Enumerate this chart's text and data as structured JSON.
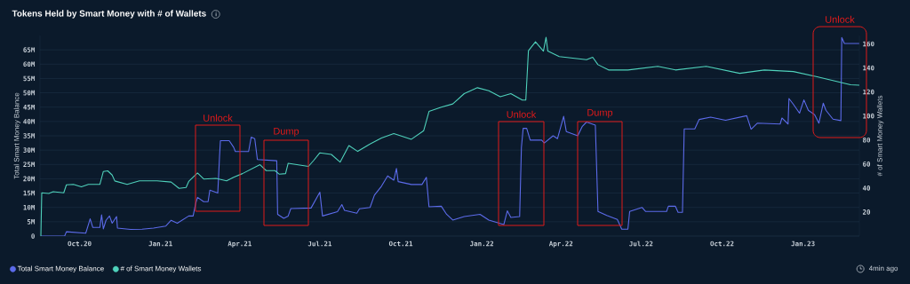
{
  "chart_data": {
    "type": "line",
    "title": "Tokens Held by Smart Money with # of Wallets",
    "ylabel": "Total Smart Money Balance",
    "y2label": "# of Smart Money Wallets",
    "xlim": [
      "2020-08-17",
      "2023-03-06"
    ],
    "xticks": [
      {
        "value": "2020-10-01",
        "label": "Oct.20"
      },
      {
        "value": "2021-01-01",
        "label": "Jan.21"
      },
      {
        "value": "2021-04-01",
        "label": "Apr.21"
      },
      {
        "value": "2021-07-01",
        "label": "Jul.21"
      },
      {
        "value": "2021-10-01",
        "label": "Oct.21"
      },
      {
        "value": "2022-01-01",
        "label": "Jan.22"
      },
      {
        "value": "2022-04-01",
        "label": "Apr.22"
      },
      {
        "value": "2022-07-01",
        "label": "Jul.22"
      },
      {
        "value": "2022-10-01",
        "label": "Oct.22"
      },
      {
        "value": "2023-01-01",
        "label": "Jan.23"
      }
    ],
    "ylim": [
      0,
      70000000
    ],
    "yticks": [
      0,
      {
        "value": 5000000,
        "label": "5M"
      },
      {
        "value": 10000000,
        "label": "10M"
      },
      {
        "value": 15000000,
        "label": "15M"
      },
      {
        "value": 20000000,
        "label": "20M"
      },
      {
        "value": 25000000,
        "label": "25M"
      },
      {
        "value": 30000000,
        "label": "30M"
      },
      {
        "value": 35000000,
        "label": "35M"
      },
      {
        "value": 40000000,
        "label": "40M"
      },
      {
        "value": 45000000,
        "label": "45M"
      },
      {
        "value": 50000000,
        "label": "50M"
      },
      {
        "value": 55000000,
        "label": "55M"
      },
      {
        "value": 60000000,
        "label": "60M"
      },
      {
        "value": 65000000,
        "label": "65M"
      }
    ],
    "y2lim": [
      0,
      167
    ],
    "y2ticks": [
      20,
      40,
      60,
      80,
      100,
      120,
      140,
      160
    ],
    "grid": "y",
    "legend": "bottom",
    "series": [
      {
        "name": "Total Smart Money Balance",
        "color": "#5c6bea",
        "x": [
          "2020-08-18",
          "2020-09-14",
          "2020-09-16",
          "2020-10-08",
          "2020-10-13",
          "2020-10-16",
          "2020-10-24",
          "2020-10-26",
          "2020-10-28",
          "2020-10-31",
          "2020-11-04",
          "2020-11-07",
          "2020-11-12",
          "2020-11-13",
          "2020-11-28",
          "2020-12-11",
          "2020-12-24",
          "2021-01-07",
          "2021-01-13",
          "2021-01-20",
          "2021-02-02",
          "2021-02-07",
          "2021-02-10",
          "2021-02-12",
          "2021-02-19",
          "2021-02-24",
          "2021-02-26",
          "2021-03-07",
          "2021-03-09",
          "2021-03-10",
          "2021-03-20",
          "2021-03-25",
          "2021-03-27",
          "2021-04-11",
          "2021-04-14",
          "2021-04-18",
          "2021-04-21",
          "2021-05-13",
          "2021-05-14",
          "2021-05-21",
          "2021-05-26",
          "2021-05-29",
          "2021-06-21",
          "2021-07-01",
          "2021-07-04",
          "2021-07-21",
          "2021-07-26",
          "2021-07-29",
          "2021-08-12",
          "2021-08-15",
          "2021-08-27",
          "2021-09-01",
          "2021-09-09",
          "2021-09-16",
          "2021-09-23",
          "2021-09-26",
          "2021-09-28",
          "2021-10-13",
          "2021-10-25",
          "2021-10-30",
          "2021-11-02",
          "2021-11-16",
          "2021-11-22",
          "2021-11-29",
          "2021-12-12",
          "2021-12-30",
          "2022-01-09",
          "2022-01-26",
          "2022-01-30",
          "2022-02-03",
          "2022-02-13",
          "2022-02-15",
          "2022-02-17",
          "2022-02-21",
          "2022-02-25",
          "2022-03-10",
          "2022-03-13",
          "2022-03-23",
          "2022-03-28",
          "2022-04-04",
          "2022-04-07",
          "2022-04-20",
          "2022-04-25",
          "2022-04-30",
          "2022-05-10",
          "2022-05-13",
          "2022-05-23",
          "2022-06-04",
          "2022-06-09",
          "2022-06-16",
          "2022-06-18",
          "2022-07-02",
          "2022-07-06",
          "2022-07-30",
          "2022-08-01",
          "2022-08-09",
          "2022-08-12",
          "2022-08-17",
          "2022-08-19",
          "2022-08-31",
          "2022-09-05",
          "2022-09-18",
          "2022-10-05",
          "2022-10-29",
          "2022-11-03",
          "2022-11-10",
          "2022-12-06",
          "2022-12-08",
          "2022-12-15",
          "2022-12-16",
          "2022-12-21",
          "2022-12-28",
          "2023-01-02",
          "2023-01-07",
          "2023-01-14",
          "2023-01-19",
          "2023-01-24",
          "2023-01-27",
          "2023-02-04",
          "2023-02-13",
          "2023-02-14",
          "2023-02-17",
          "2023-03-06"
        ],
        "values": [
          0,
          0,
          1500000,
          1000000,
          6000000,
          3000000,
          3000000,
          7400000,
          2500000,
          5500000,
          7000000,
          4500000,
          6800000,
          2800000,
          2300000,
          2400000,
          2800000,
          3500000,
          5500000,
          4500000,
          7000000,
          7000000,
          11500000,
          13500000,
          12000000,
          12000000,
          16000000,
          15000000,
          27800000,
          33300000,
          33300000,
          31000000,
          29500000,
          29500000,
          34500000,
          34000000,
          26700000,
          26300000,
          7600000,
          6200000,
          7000000,
          9600000,
          9800000,
          15300000,
          7000000,
          8500000,
          11000000,
          9000000,
          8000000,
          9500000,
          10000000,
          14300000,
          17400000,
          21000000,
          19500000,
          23600000,
          19000000,
          18000000,
          18000000,
          20500000,
          10200000,
          10400000,
          7600000,
          5600000,
          6800000,
          7600000,
          5600000,
          4000000,
          8800000,
          6500000,
          6800000,
          30900000,
          37600000,
          37600000,
          33500000,
          33500000,
          32500000,
          35000000,
          34000000,
          41800000,
          36500000,
          35000000,
          38200000,
          39800000,
          38700000,
          8600000,
          7200000,
          5800000,
          2400000,
          2400000,
          8600000,
          10000000,
          8600000,
          8600000,
          10400000,
          10400000,
          8300000,
          8300000,
          37400000,
          37400000,
          40700000,
          41500000,
          40400000,
          42000000,
          37300000,
          39400000,
          39100000,
          41200000,
          39100000,
          48000000,
          46000000,
          42900000,
          47500000,
          43900000,
          42400000,
          39400000,
          46400000,
          43900000,
          40800000,
          40300000,
          69300000,
          67200000,
          67200000
        ]
      },
      {
        "name": "# of Smart Money Wallets",
        "color": "#4fd1bb",
        "axis": "y2",
        "x": [
          "2020-08-18",
          "2020-08-19",
          "2020-08-27",
          "2020-09-01",
          "2020-09-13",
          "2020-09-16",
          "2020-09-24",
          "2020-10-03",
          "2020-10-11",
          "2020-10-24",
          "2020-10-28",
          "2020-11-02",
          "2020-11-07",
          "2020-11-10",
          "2020-11-24",
          "2020-12-08",
          "2020-12-28",
          "2021-01-13",
          "2021-01-22",
          "2021-01-30",
          "2021-02-02",
          "2021-02-12",
          "2021-02-19",
          "2021-03-05",
          "2021-03-17",
          "2021-03-25",
          "2021-04-04",
          "2021-04-24",
          "2021-05-01",
          "2021-05-11",
          "2021-05-16",
          "2021-05-23",
          "2021-05-26",
          "2021-06-18",
          "2021-06-24",
          "2021-07-01",
          "2021-07-14",
          "2021-07-24",
          "2021-08-03",
          "2021-08-13",
          "2021-08-27",
          "2021-09-09",
          "2021-09-23",
          "2021-10-13",
          "2021-10-27",
          "2021-11-02",
          "2021-11-16",
          "2021-11-29",
          "2021-12-12",
          "2021-12-27",
          "2022-01-09",
          "2022-01-22",
          "2022-02-03",
          "2022-02-16",
          "2022-02-20",
          "2022-02-23",
          "2022-03-03",
          "2022-03-12",
          "2022-03-15",
          "2022-03-17",
          "2022-03-30",
          "2022-04-30",
          "2022-05-07",
          "2022-05-13",
          "2022-05-25",
          "2022-06-16",
          "2022-07-20",
          "2022-08-09",
          "2022-09-13",
          "2022-10-21",
          "2022-11-18",
          "2022-12-21",
          "2023-01-17",
          "2023-02-24",
          "2023-03-06"
        ],
        "values": [
          0,
          36,
          35.5,
          37,
          36,
          42.7,
          43,
          41,
          43,
          43,
          53.8,
          54.3,
          50.8,
          45.9,
          43,
          46,
          46,
          45,
          39.7,
          40.5,
          45.5,
          52.5,
          47.5,
          48,
          46,
          49,
          52,
          59.4,
          54.5,
          54.5,
          51.5,
          52,
          60.6,
          58,
          63,
          69.3,
          68,
          61.6,
          75.4,
          70.5,
          76.7,
          81.6,
          85.3,
          80.6,
          87.8,
          103.8,
          107.4,
          110,
          118.6,
          123.5,
          121,
          116,
          118.6,
          113.2,
          113.2,
          154.4,
          161.8,
          154,
          165.5,
          154,
          149.4,
          146.9,
          148.9,
          142.7,
          138.3,
          138.3,
          141.3,
          138.3,
          141.3,
          135.5,
          138.3,
          137,
          132.7,
          126,
          125.6
        ]
      }
    ],
    "annotations": [
      "Unlock",
      "Dump",
      "Unlock",
      "Dump",
      "Unlock",
      "4min ago"
    ]
  }
}
